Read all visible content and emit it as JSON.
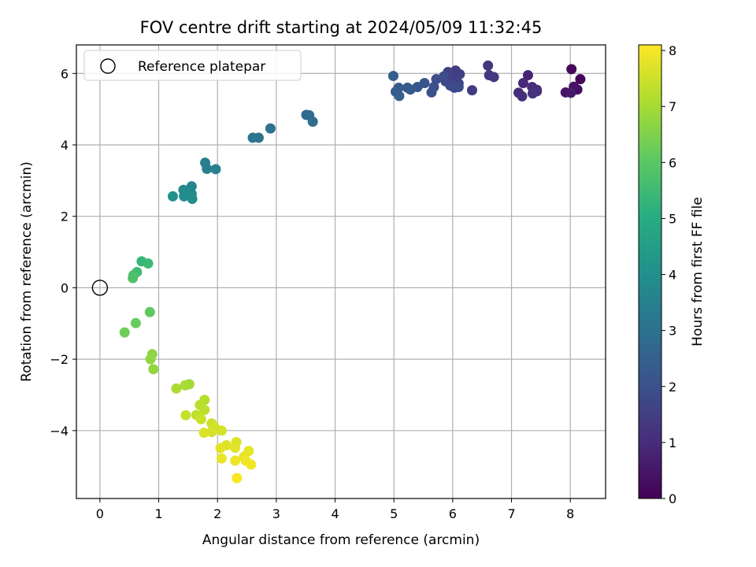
{
  "chart_data": {
    "type": "scatter",
    "title": "FOV centre drift starting at 2024/05/09 11:32:45",
    "xlabel": "Angular distance from reference (arcmin)",
    "ylabel": "Rotation from reference (arcmin)",
    "xlim": [
      -0.4,
      8.6
    ],
    "ylim": [
      -5.9,
      6.8
    ],
    "xticks": [
      "0",
      "1",
      "2",
      "3",
      "4",
      "5",
      "6",
      "7",
      "8"
    ],
    "yticks": [
      "−4",
      "−2",
      "0",
      "2",
      "4",
      "6"
    ],
    "grid": true,
    "legend": {
      "position": "top-left",
      "label": "Reference platepar"
    },
    "reference_point": {
      "x": 0,
      "y": 0
    },
    "colorbar": {
      "label": "Hours from first FF file",
      "range": [
        0,
        8.1
      ],
      "ticks": [
        "0",
        "1",
        "2",
        "3",
        "4",
        "5",
        "6",
        "7",
        "8"
      ],
      "colormap": "viridis"
    },
    "points": [
      {
        "x": 8.17,
        "y": 5.84,
        "h": 0.1
      },
      {
        "x": 8.02,
        "y": 6.12,
        "h": 0.2
      },
      {
        "x": 8.12,
        "y": 5.55,
        "h": 0.3
      },
      {
        "x": 8.06,
        "y": 5.63,
        "h": 0.4
      },
      {
        "x": 7.92,
        "y": 5.47,
        "h": 0.5
      },
      {
        "x": 8.01,
        "y": 5.46,
        "h": 0.6
      },
      {
        "x": 7.43,
        "y": 5.54,
        "h": 0.7
      },
      {
        "x": 7.28,
        "y": 5.95,
        "h": 0.8
      },
      {
        "x": 7.2,
        "y": 5.73,
        "h": 0.9
      },
      {
        "x": 7.12,
        "y": 5.46,
        "h": 1.0
      },
      {
        "x": 7.35,
        "y": 5.62,
        "h": 1.05
      },
      {
        "x": 7.18,
        "y": 5.36,
        "h": 1.1
      },
      {
        "x": 7.43,
        "y": 5.5,
        "h": 1.15
      },
      {
        "x": 7.36,
        "y": 5.44,
        "h": 1.2
      },
      {
        "x": 6.6,
        "y": 6.22,
        "h": 1.25
      },
      {
        "x": 6.62,
        "y": 5.95,
        "h": 1.3
      },
      {
        "x": 6.7,
        "y": 5.9,
        "h": 1.35
      },
      {
        "x": 6.33,
        "y": 5.53,
        "h": 1.4
      },
      {
        "x": 6.05,
        "y": 6.08,
        "h": 1.45
      },
      {
        "x": 6.12,
        "y": 5.98,
        "h": 1.5
      },
      {
        "x": 5.92,
        "y": 6.04,
        "h": 1.55
      },
      {
        "x": 6.0,
        "y": 5.82,
        "h": 1.6
      },
      {
        "x": 6.1,
        "y": 5.72,
        "h": 1.65
      },
      {
        "x": 5.88,
        "y": 5.78,
        "h": 1.7
      },
      {
        "x": 6.03,
        "y": 5.6,
        "h": 1.75
      },
      {
        "x": 5.96,
        "y": 5.66,
        "h": 1.8
      },
      {
        "x": 6.1,
        "y": 5.62,
        "h": 1.85
      },
      {
        "x": 5.85,
        "y": 5.92,
        "h": 1.9
      },
      {
        "x": 5.72,
        "y": 5.84,
        "h": 1.95
      },
      {
        "x": 5.68,
        "y": 5.62,
        "h": 2.0
      },
      {
        "x": 5.64,
        "y": 5.47,
        "h": 2.05
      },
      {
        "x": 5.52,
        "y": 5.73,
        "h": 2.1
      },
      {
        "x": 5.4,
        "y": 5.62,
        "h": 2.15
      },
      {
        "x": 5.28,
        "y": 5.55,
        "h": 2.2
      },
      {
        "x": 5.23,
        "y": 5.6,
        "h": 2.25
      },
      {
        "x": 5.08,
        "y": 5.6,
        "h": 2.3
      },
      {
        "x": 5.03,
        "y": 5.49,
        "h": 2.35
      },
      {
        "x": 4.99,
        "y": 5.93,
        "h": 2.4
      },
      {
        "x": 5.09,
        "y": 5.37,
        "h": 2.45
      },
      {
        "x": 3.51,
        "y": 4.84,
        "h": 2.8
      },
      {
        "x": 3.56,
        "y": 4.83,
        "h": 2.85
      },
      {
        "x": 3.62,
        "y": 4.65,
        "h": 2.9
      },
      {
        "x": 2.9,
        "y": 4.46,
        "h": 3.05
      },
      {
        "x": 2.7,
        "y": 4.2,
        "h": 3.1
      },
      {
        "x": 2.6,
        "y": 4.2,
        "h": 3.15
      },
      {
        "x": 1.79,
        "y": 3.5,
        "h": 3.45
      },
      {
        "x": 1.82,
        "y": 3.33,
        "h": 3.5
      },
      {
        "x": 1.97,
        "y": 3.32,
        "h": 3.55
      },
      {
        "x": 1.56,
        "y": 2.84,
        "h": 3.75
      },
      {
        "x": 1.42,
        "y": 2.74,
        "h": 3.8
      },
      {
        "x": 1.5,
        "y": 2.68,
        "h": 3.85
      },
      {
        "x": 1.56,
        "y": 2.63,
        "h": 3.9
      },
      {
        "x": 1.43,
        "y": 2.56,
        "h": 3.95
      },
      {
        "x": 1.57,
        "y": 2.49,
        "h": 4.0
      },
      {
        "x": 1.24,
        "y": 2.56,
        "h": 4.05
      },
      {
        "x": 0.71,
        "y": 0.74,
        "h": 5.4
      },
      {
        "x": 0.82,
        "y": 0.68,
        "h": 5.5
      },
      {
        "x": 0.63,
        "y": 0.44,
        "h": 5.6
      },
      {
        "x": 0.57,
        "y": 0.35,
        "h": 5.7
      },
      {
        "x": 0.56,
        "y": 0.27,
        "h": 5.8
      },
      {
        "x": 0.85,
        "y": -0.68,
        "h": 6.1
      },
      {
        "x": 0.61,
        "y": -0.99,
        "h": 6.2
      },
      {
        "x": 0.42,
        "y": -1.25,
        "h": 6.3
      },
      {
        "x": 0.89,
        "y": -1.86,
        "h": 6.7
      },
      {
        "x": 0.86,
        "y": -2.0,
        "h": 6.75
      },
      {
        "x": 0.91,
        "y": -2.28,
        "h": 6.8
      },
      {
        "x": 1.52,
        "y": -2.7,
        "h": 7.0
      },
      {
        "x": 1.45,
        "y": -2.73,
        "h": 7.05
      },
      {
        "x": 1.3,
        "y": -2.82,
        "h": 7.1
      },
      {
        "x": 1.78,
        "y": -3.14,
        "h": 7.2
      },
      {
        "x": 1.7,
        "y": -3.28,
        "h": 7.25
      },
      {
        "x": 1.78,
        "y": -3.42,
        "h": 7.3
      },
      {
        "x": 1.64,
        "y": -3.56,
        "h": 7.35
      },
      {
        "x": 1.46,
        "y": -3.57,
        "h": 7.4
      },
      {
        "x": 1.72,
        "y": -3.68,
        "h": 7.45
      },
      {
        "x": 1.9,
        "y": -3.8,
        "h": 7.5
      },
      {
        "x": 1.95,
        "y": -3.9,
        "h": 7.55
      },
      {
        "x": 2.07,
        "y": -4.0,
        "h": 7.6
      },
      {
        "x": 1.9,
        "y": -4.04,
        "h": 7.62
      },
      {
        "x": 1.77,
        "y": -4.06,
        "h": 7.65
      },
      {
        "x": 2.32,
        "y": -4.32,
        "h": 7.7
      },
      {
        "x": 2.15,
        "y": -4.41,
        "h": 7.72
      },
      {
        "x": 2.3,
        "y": -4.48,
        "h": 7.75
      },
      {
        "x": 2.05,
        "y": -4.49,
        "h": 7.78
      },
      {
        "x": 2.53,
        "y": -4.57,
        "h": 7.8
      },
      {
        "x": 2.45,
        "y": -4.73,
        "h": 7.83
      },
      {
        "x": 2.07,
        "y": -4.78,
        "h": 7.85
      },
      {
        "x": 2.3,
        "y": -4.84,
        "h": 7.88
      },
      {
        "x": 2.48,
        "y": -4.84,
        "h": 7.9
      },
      {
        "x": 2.57,
        "y": -4.95,
        "h": 7.95
      },
      {
        "x": 2.33,
        "y": -5.33,
        "h": 8.05
      }
    ]
  }
}
